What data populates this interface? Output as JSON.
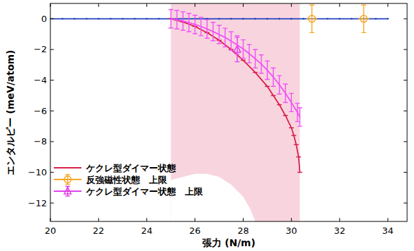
{
  "chart_data": {
    "type": "line",
    "x_label": "張力 (N/m)",
    "y_label": "エンタルピー (meV/atom)",
    "xlim": [
      20,
      34.8
    ],
    "ylim": [
      -13.2,
      1
    ],
    "xticks": [
      20,
      22,
      24,
      26,
      28,
      30,
      32,
      34
    ],
    "yticks": [
      0,
      -2,
      -4,
      -6,
      -8,
      -10,
      -12
    ],
    "legend": "lower left",
    "grid": false,
    "shaded_region": {
      "x": [
        25,
        30.35
      ],
      "color": "#f8d5de"
    },
    "unshaded_region": {
      "x": [
        25,
        25,
        25.5,
        26,
        26.5,
        27,
        27.5,
        28,
        28.3,
        28.5
      ],
      "y": [
        -13.2,
        -10.5,
        -10.3,
        -10.1,
        -10.1,
        -10.3,
        -10.8,
        -11.6,
        -12.4,
        -13.2
      ]
    },
    "series": [
      {
        "name": null,
        "type": "line",
        "color": "#2040c0",
        "marker": "dot",
        "line_style": "solid",
        "x": [
          20,
          20.5,
          21,
          21.5,
          22,
          22.5,
          23,
          23.5,
          24,
          24.5,
          25,
          25.5,
          26,
          26.5,
          27,
          27.5,
          28,
          28.5,
          29,
          29.5,
          30,
          30.5,
          31,
          31.5,
          32,
          32.5,
          33,
          33.5,
          34
        ],
        "values": [
          0,
          0,
          0,
          0,
          0,
          0,
          0,
          0,
          0,
          0,
          0,
          0,
          0,
          0,
          0,
          0,
          0,
          0,
          0,
          0,
          0,
          0,
          0,
          0,
          0,
          0,
          0,
          0,
          0
        ]
      },
      {
        "name": "ケクレ型ダイマー状態",
        "type": "line",
        "color": "#d81e4a",
        "marker": "hline",
        "line_style": "solid",
        "x": [
          25,
          25.5,
          26,
          26.5,
          27,
          27.5,
          28,
          28.5,
          29,
          29.25,
          29.5,
          29.75,
          30,
          30.1,
          30.2,
          30.3,
          30.35
        ],
        "values": [
          0,
          -0.2,
          -0.5,
          -0.9,
          -1.4,
          -2.0,
          -2.7,
          -3.5,
          -4.4,
          -5.0,
          -5.6,
          -6.3,
          -7.1,
          -7.6,
          -8.2,
          -9.0,
          -10.0
        ]
      },
      {
        "name": "反強磁性状態　上限",
        "type": "scatter",
        "color": "#f5a623",
        "marker": "circle",
        "x": [
          30.85,
          33
        ],
        "values": [
          0,
          0
        ],
        "errors": [
          0.9,
          0.9
        ]
      },
      {
        "name": "ケクレ型ダイマー状態　上限",
        "type": "scatter",
        "color": "#e040e8",
        "marker": "triangle",
        "x": [
          27.75
        ],
        "values": [
          -2.0
        ],
        "errors": [
          0.8
        ]
      },
      {
        "name": null,
        "type": "line",
        "color": "#f050f8",
        "marker": "none",
        "line_style": "solid",
        "x": [
          25,
          25.25,
          25.5,
          25.75,
          26,
          26.25,
          26.5,
          26.75,
          27,
          27.25,
          27.5,
          27.75,
          28,
          28.25,
          28.5,
          28.75,
          29,
          29.25,
          29.5,
          29.75,
          30,
          30.25,
          30.35
        ],
        "values": [
          0,
          -0.06,
          -0.15,
          -0.25,
          -0.37,
          -0.5,
          -0.66,
          -0.83,
          -1.02,
          -1.22,
          -1.45,
          -1.7,
          -1.97,
          -2.27,
          -2.6,
          -2.95,
          -3.35,
          -3.8,
          -4.3,
          -4.85,
          -5.45,
          -6.1,
          -6.4
        ],
        "errors": [
          0.6,
          0.6,
          0.6,
          0.6,
          0.6,
          0.6,
          0.6,
          0.6,
          0.6,
          0.6,
          0.6,
          0.6,
          0.6,
          0.6,
          0.6,
          0.6,
          0.6,
          0.6,
          0.6,
          0.6,
          0.6,
          0.6,
          0.6
        ]
      }
    ]
  }
}
